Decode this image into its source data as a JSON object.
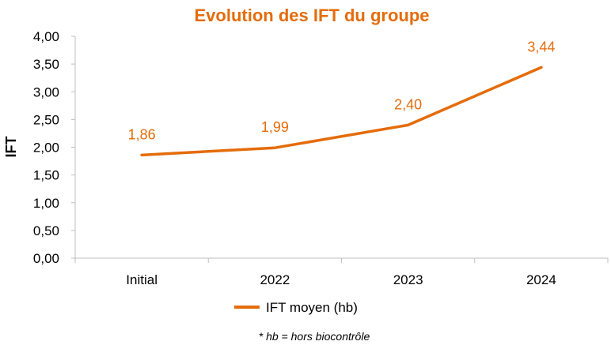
{
  "chart_data": {
    "type": "line",
    "title": "Evolution des IFT du groupe",
    "xlabel": "",
    "ylabel": "IFT",
    "categories": [
      "Initial",
      "2022",
      "2023",
      "2024"
    ],
    "series": [
      {
        "name": "IFT moyen (hb)",
        "values": [
          1.86,
          1.99,
          2.4,
          3.44
        ],
        "data_labels": [
          "1,86",
          "1,99",
          "2,40",
          "3,44"
        ]
      }
    ],
    "ylim": [
      0,
      4
    ],
    "yticks": [
      0,
      0.5,
      1,
      1.5,
      2,
      2.5,
      3,
      3.5,
      4
    ],
    "ytick_labels": [
      "0,00",
      "0,50",
      "1,00",
      "1,50",
      "2,00",
      "2,50",
      "3,00",
      "3,50",
      "4,00"
    ],
    "grid": false,
    "legend_position": "bottom",
    "footnote": "* hb = hors biocontrôle"
  },
  "colors": {
    "series": "#E46C0A",
    "title": "#E46C0A",
    "axis": "#BFBFBF",
    "text": "#000000"
  }
}
